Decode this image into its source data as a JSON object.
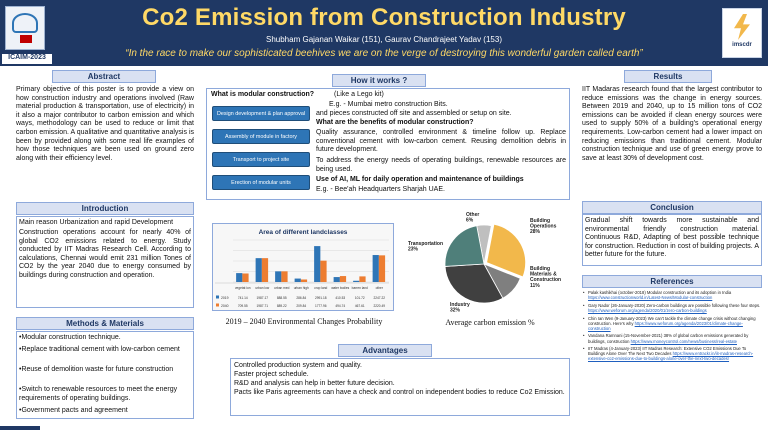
{
  "header": {
    "title": "Co2 Emission from Construction Industry",
    "authors": "Shubham Gajanan Waikar (151), Gaurav Chandrajeet Yadav (153)",
    "tagline": "“In the race to make our sophisticated beehives we are on the verge of destroying this wonderful garden called earth”",
    "conference": "ICAIM-2023",
    "right_logo_text": "imscdr"
  },
  "abstract": {
    "heading": "Abstract",
    "text": "Primary objective of this poster is to provide a view on how construction industry and operations involved (Raw material production & transportation, use of electricity) in it also a major contributor to carbon emission and which ways, methodology can be used to reduce or limit that carbon emission. A qualitative and quantitative analysis is been by provided along with some real life examples of how those techniques are been used on ground zero along with their efficiency level."
  },
  "introduction": {
    "heading": "Introduction",
    "lead": "Main reason Urbanization and rapid Development",
    "text": "Construction operations account for nearly 40% of global CO2 emissions related to energy. Study conducted by IIT Madras Research Cell. According to calculations, Chennai would emit 231 million Tones of CO2 by the year 2040 due to energy consumed by buildings during construction and operation."
  },
  "methods": {
    "heading": "Methods & Materials",
    "items": [
      "•Modular construction technique.",
      "•Replace traditional cement with low-carbon cement",
      "•Reuse of demolition waste for future construction",
      "•Switch to renewable resources to meet the energy requirements of operating buildings.",
      "•Government pacts and agreement"
    ]
  },
  "how_it_works": {
    "heading": "How it works ?",
    "steps": [
      "Design development & plan approval",
      "Assembly of module in factory",
      "Transport to project site",
      "Erection of modular units"
    ],
    "q1": "What is modular construction?",
    "q1_aside": "(Like a Lego kit)",
    "a1_line1": "E.g. - Mumbai metro construction Bits.",
    "a1_line2": "and pieces constructed off site and assembled or setup on site.",
    "q2": "What are the benefits of modular construction?",
    "a2": "Quality assurance, controlled environment & timeline follow up. Replace conventional cement with low-carbon cement. Reusing demolition debris in future development.",
    "a3": "To address the energy needs of operating buildings, renewable resources are being used.",
    "q3": "Use of AI, ML for daily operation and maintenance of buildings",
    "a4": "E.g. - Bee'ah Headquarters Sharjah UAE."
  },
  "landclass_chart": {
    "title": "Area of different landclasses",
    "caption": "2019 – 2040 Environmental Changes Probability",
    "row_labels": [
      "2019",
      "2040"
    ],
    "col_labels": [
      "vegetat ion",
      "urban low",
      "urban med",
      "urban high",
      "crop land",
      "water bodies",
      "barren land",
      "other"
    ]
  },
  "pie_caption": "Average carbon emission %",
  "results": {
    "heading": "Results",
    "text": "IIT Madaras research found that the largest contributor to reduce emissions was the change in energy sources. Between 2019 and 2040, up to 15 million tons of CO2 emissions can be avoided if clean energy sources were used to supply 50% of a building's operational energy requirements. Low-carbon cement had a lower impact on reducing emissions than traditional cement. Modular construction technique and use of green energy prove to save at least 30% of development cost."
  },
  "conclusion": {
    "heading": "Conclusion",
    "text": "Gradual shift towards more sustainable and environmental friendly construction material. Continuous R&D, Adapting of best possible technique for construction. Reduction in cost of building projects. A better future for the future."
  },
  "advantages": {
    "heading": "Advantages",
    "items": [
      "Controlled production system and quality.",
      "Faster project schedule.",
      "R&D and analysis can help in better future decision.",
      "Pacts like Paris agreements can have a check and control on independent bodies to reduce Co2 Emission."
    ]
  },
  "references": {
    "heading": "References",
    "items": [
      {
        "text": "Palak kashikhai (october-2018) Modular construction and its adoption in India",
        "link": "https://www.constructionworld.in/Latest-News/Modular-construction"
      },
      {
        "text": "Gary Nador (26-January-2020) Zero-carbon buildings are possible following these four steps.",
        "link": "https://www.weforum.org/agenda/2020/01/zero-carbon-buildings"
      },
      {
        "text": "Chin Ian Wen (9-January-2023) We can't tackle the climate change crisis without changing construction. Here's why",
        "link": "https://www.weforum.org/agenda/2023/01/climate-change-construction"
      },
      {
        "text": "Vandana Ramnani (15-November-2021) 38% of global carbon emissions generated by buildings, construction",
        "link": "https://www.moneycontrol.com/news/business/real-estate"
      },
      {
        "text": "IIT Madras (4-January-2023) IIT Madras Research: Extensive CO2 Emissions Due To Buildings Alone Over The Next Two Decades",
        "link": "https://www.entrackr.in/iit-madras-research-extensive-co2-emissions-due-to-buildings-alone-over-the-next-two-decades/"
      }
    ]
  },
  "chart_data": [
    {
      "type": "bar",
      "title": "Area of different landclasses",
      "categories": [
        "vegetation",
        "urban low",
        "urban med",
        "urban high",
        "crop land",
        "water bodies",
        "barren land",
        "other"
      ],
      "series": [
        {
          "name": "2019",
          "values": [
            741.14,
            1987.17,
            888.55,
            286.84,
            2991.18,
            410.53,
            101.72,
            2247.22
          ]
        },
        {
          "name": "2040",
          "values": [
            709.55,
            1987.71,
            889.22,
            209.84,
            1777.96,
            494.74,
            467.61,
            2220.49
          ]
        }
      ],
      "colors": [
        "#2e75b6",
        "#ed7d31"
      ],
      "grid": true,
      "ylim": [
        0,
        3500
      ]
    },
    {
      "type": "pie",
      "labels": [
        "Building Operations",
        "Building Materials & Construction",
        "Industry",
        "Transportation",
        "Other"
      ],
      "values": [
        28,
        11,
        32,
        23,
        6
      ],
      "colors": [
        "#f2b84b",
        "#7f7f7f",
        "#404040",
        "#4f7f7a",
        "#bfbfbf"
      ]
    }
  ]
}
